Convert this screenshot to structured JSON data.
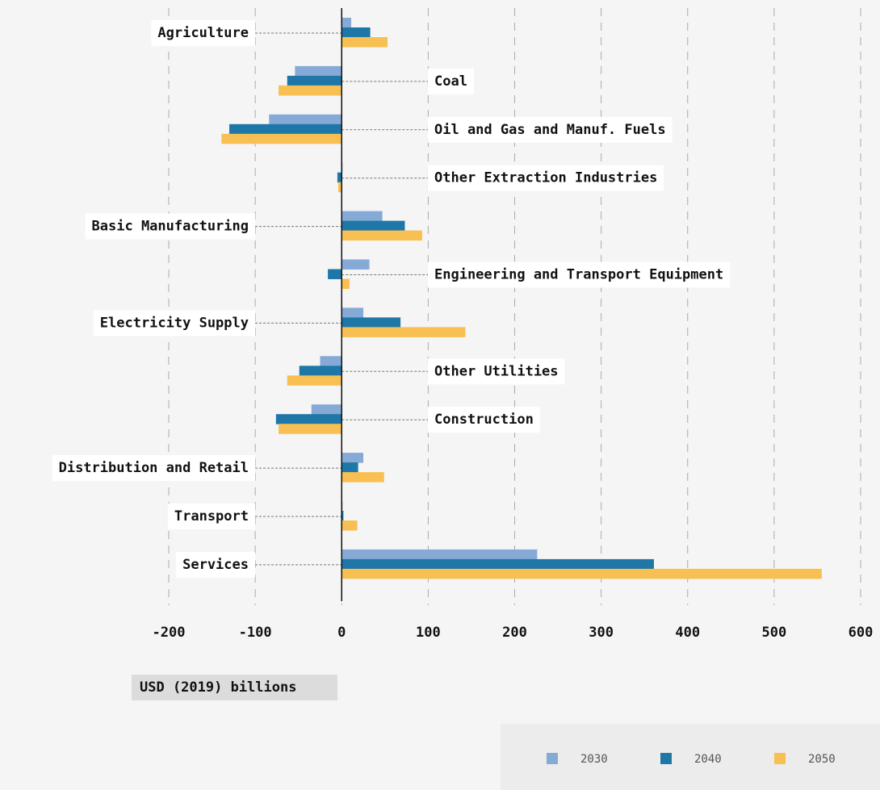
{
  "chart_data": {
    "type": "bar",
    "orientation": "horizontal",
    "categories": [
      "Agriculture",
      "Coal",
      "Oil and Gas and Manuf. Fuels",
      "Other Extraction Industries",
      "Basic Manufacturing",
      "Engineering and Transport Equipment",
      "Electricity Supply",
      "Other Utilities",
      "Construction",
      "Distribution and Retail",
      "Transport",
      "Services"
    ],
    "series": [
      {
        "name": "2030",
        "color": "#86aad6",
        "values": [
          11,
          -54,
          -84,
          1,
          47,
          32,
          25,
          -25,
          -35,
          25,
          1,
          226
        ]
      },
      {
        "name": "2040",
        "color": "#1f77a8",
        "values": [
          33,
          -63,
          -130,
          -5,
          73,
          -16,
          68,
          -49,
          -76,
          19,
          2,
          361
        ]
      },
      {
        "name": "2050",
        "color": "#f8bf52",
        "values": [
          53,
          -73,
          -139,
          -4,
          93,
          9,
          143,
          -63,
          -73,
          49,
          18,
          555
        ]
      }
    ],
    "xlim": [
      -200,
      600
    ],
    "xticks": [
      -200,
      -100,
      0,
      100,
      200,
      300,
      400,
      500,
      600
    ],
    "xlabel": "USD (2019) billions",
    "grid": true
  }
}
